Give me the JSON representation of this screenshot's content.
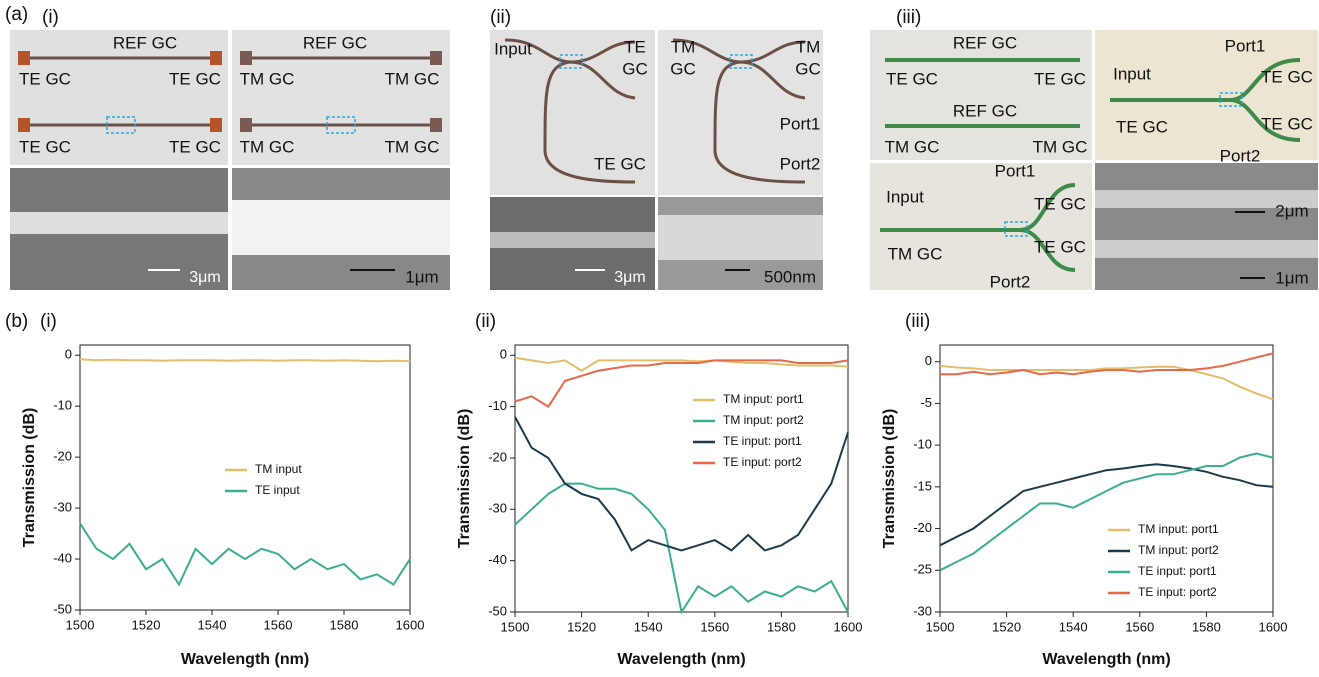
{
  "figure": {
    "label_a": "(a)",
    "label_b": "(b)"
  },
  "micrographs": [
    {
      "label": "(i)",
      "texts": [
        "REF GC",
        "TE GC",
        "TE GC",
        "TE GC",
        "TE GC",
        "REF GC",
        "TM GC",
        "TM GC",
        "TM GC",
        "TM GC",
        "3μm",
        "1μm"
      ]
    },
    {
      "label": "(ii)",
      "texts": [
        "Input",
        "TE",
        "GC",
        "TE GC",
        "TM",
        "GC",
        "TM",
        "GC",
        "Port1",
        "Port2",
        "3μm",
        "500nm"
      ]
    },
    {
      "label": "(iii)",
      "texts": [
        "REF GC",
        "TE GC",
        "TE GC",
        "REF GC",
        "TM GC",
        "TM GC",
        "Port1",
        "TE GC",
        "Input",
        "TE GC",
        "TE GC",
        "Port2",
        "Port1",
        "Input",
        "TE GC",
        "TM GC",
        "TE GC",
        "Port2",
        "2μm",
        "1μm"
      ]
    }
  ],
  "chart_data": [
    {
      "type": "line",
      "title": "(i)",
      "x_label": "Wavelength (nm)",
      "y_label": "Transmission (dB)",
      "xlim": [
        1500,
        1600
      ],
      "ylim": [
        -50,
        2
      ],
      "xticks": [
        1500,
        1520,
        1540,
        1560,
        1580,
        1600
      ],
      "yticks": [
        -50,
        -40,
        -30,
        -20,
        -10,
        0
      ],
      "legend": "lower center",
      "x": [
        1500,
        1505,
        1510,
        1515,
        1520,
        1525,
        1530,
        1535,
        1540,
        1545,
        1550,
        1555,
        1560,
        1565,
        1570,
        1575,
        1580,
        1585,
        1590,
        1595,
        1600
      ],
      "series": [
        {
          "name": "TM input",
          "color": "#e6bd6a",
          "values": [
            -0.8,
            -1,
            -0.9,
            -1,
            -1,
            -1.1,
            -1,
            -1,
            -1,
            -1.1,
            -1,
            -1,
            -1.1,
            -1,
            -1,
            -1.1,
            -1,
            -1.1,
            -1.2,
            -1.1,
            -1.2
          ]
        },
        {
          "name": "TE input",
          "color": "#3aae91",
          "values": [
            -33,
            -38,
            -40,
            -37,
            -42,
            -40,
            -45,
            -38,
            -41,
            -38,
            -40,
            -38,
            -39,
            -42,
            -40,
            -42,
            -41,
            -44,
            -43,
            -45,
            -40
          ]
        }
      ]
    },
    {
      "type": "line",
      "title": "(ii)",
      "x_label": "Wavelength (nm)",
      "y_label": "Transmission (dB)",
      "xlim": [
        1500,
        1600
      ],
      "ylim": [
        -50,
        2
      ],
      "xticks": [
        1500,
        1520,
        1540,
        1560,
        1580,
        1600
      ],
      "yticks": [
        -50,
        -40,
        -30,
        -20,
        -10,
        0
      ],
      "legend": "upper right",
      "x": [
        1500,
        1505,
        1510,
        1515,
        1520,
        1525,
        1530,
        1535,
        1540,
        1545,
        1550,
        1555,
        1560,
        1565,
        1570,
        1575,
        1580,
        1585,
        1590,
        1595,
        1600
      ],
      "series": [
        {
          "name": "TM input: port1",
          "color": "#e6bd6a",
          "values": [
            -0.5,
            -1,
            -1.5,
            -1,
            -3,
            -1,
            -1,
            -1,
            -1,
            -1,
            -1,
            -1.2,
            -1,
            -1.3,
            -1.5,
            -1.5,
            -1.8,
            -2,
            -2,
            -2,
            -2.2
          ]
        },
        {
          "name": "TM input: port2",
          "color": "#3aae91",
          "values": [
            -33,
            -30,
            -27,
            -25,
            -25,
            -26,
            -26,
            -27,
            -30,
            -34,
            -50,
            -45,
            -47,
            -45,
            -48,
            -46,
            -47,
            -45,
            -46,
            -44,
            -50
          ]
        },
        {
          "name": "TE input: port1",
          "color": "#1d3a4c",
          "values": [
            -12,
            -18,
            -20,
            -25,
            -27,
            -28,
            -32,
            -38,
            -36,
            -37,
            -38,
            -37,
            -36,
            -38,
            -35,
            -38,
            -37,
            -35,
            -30,
            -25,
            -15
          ]
        },
        {
          "name": "TE input: port2",
          "color": "#e8684a",
          "values": [
            -9,
            -8,
            -10,
            -5,
            -4,
            -3,
            -2.5,
            -2,
            -2,
            -1.5,
            -1.5,
            -1.5,
            -1,
            -1,
            -1,
            -1,
            -1,
            -1.5,
            -1.5,
            -1.5,
            -1
          ]
        }
      ]
    },
    {
      "type": "line",
      "title": "(iii)",
      "x_label": "Wavelength (nm)",
      "y_label": "Transmission (dB)",
      "xlim": [
        1500,
        1600
      ],
      "ylim": [
        -30,
        2
      ],
      "xticks": [
        1500,
        1520,
        1540,
        1560,
        1580,
        1600
      ],
      "yticks": [
        -30,
        -25,
        -20,
        -15,
        -10,
        -5,
        0
      ],
      "legend": "lower right",
      "x": [
        1500,
        1505,
        1510,
        1515,
        1520,
        1525,
        1530,
        1535,
        1540,
        1545,
        1550,
        1555,
        1560,
        1565,
        1570,
        1575,
        1580,
        1585,
        1590,
        1595,
        1600
      ],
      "series": [
        {
          "name": "TM input: port1",
          "color": "#e6bd6a",
          "values": [
            -0.5,
            -0.7,
            -0.8,
            -1,
            -1,
            -1,
            -1,
            -1,
            -1,
            -1,
            -0.8,
            -0.8,
            -0.7,
            -0.6,
            -0.6,
            -1,
            -1.5,
            -2,
            -3,
            -3.8,
            -4.5
          ]
        },
        {
          "name": "TM input: port2",
          "color": "#1d3a4c",
          "values": [
            -22,
            -21,
            -20,
            -18.5,
            -17,
            -15.5,
            -15,
            -14.5,
            -14,
            -13.5,
            -13,
            -12.8,
            -12.5,
            -12.3,
            -12.5,
            -12.8,
            -13.2,
            -13.8,
            -14.2,
            -14.8,
            -15
          ]
        },
        {
          "name": "TE input: port1",
          "color": "#3aae91",
          "values": [
            -25,
            -24,
            -23,
            -21.5,
            -20,
            -18.5,
            -17,
            -17,
            -17.5,
            -16.5,
            -15.5,
            -14.5,
            -14,
            -13.5,
            -13.5,
            -13,
            -12.5,
            -12.5,
            -11.5,
            -11,
            -11.5
          ]
        },
        {
          "name": "TE input: port2",
          "color": "#e8684a",
          "values": [
            -1.5,
            -1.5,
            -1.2,
            -1.5,
            -1.3,
            -1,
            -1.5,
            -1.3,
            -1.5,
            -1.2,
            -1,
            -1,
            -1.2,
            -1,
            -1,
            -1,
            -0.8,
            -0.5,
            0,
            0.5,
            1
          ]
        }
      ]
    }
  ]
}
